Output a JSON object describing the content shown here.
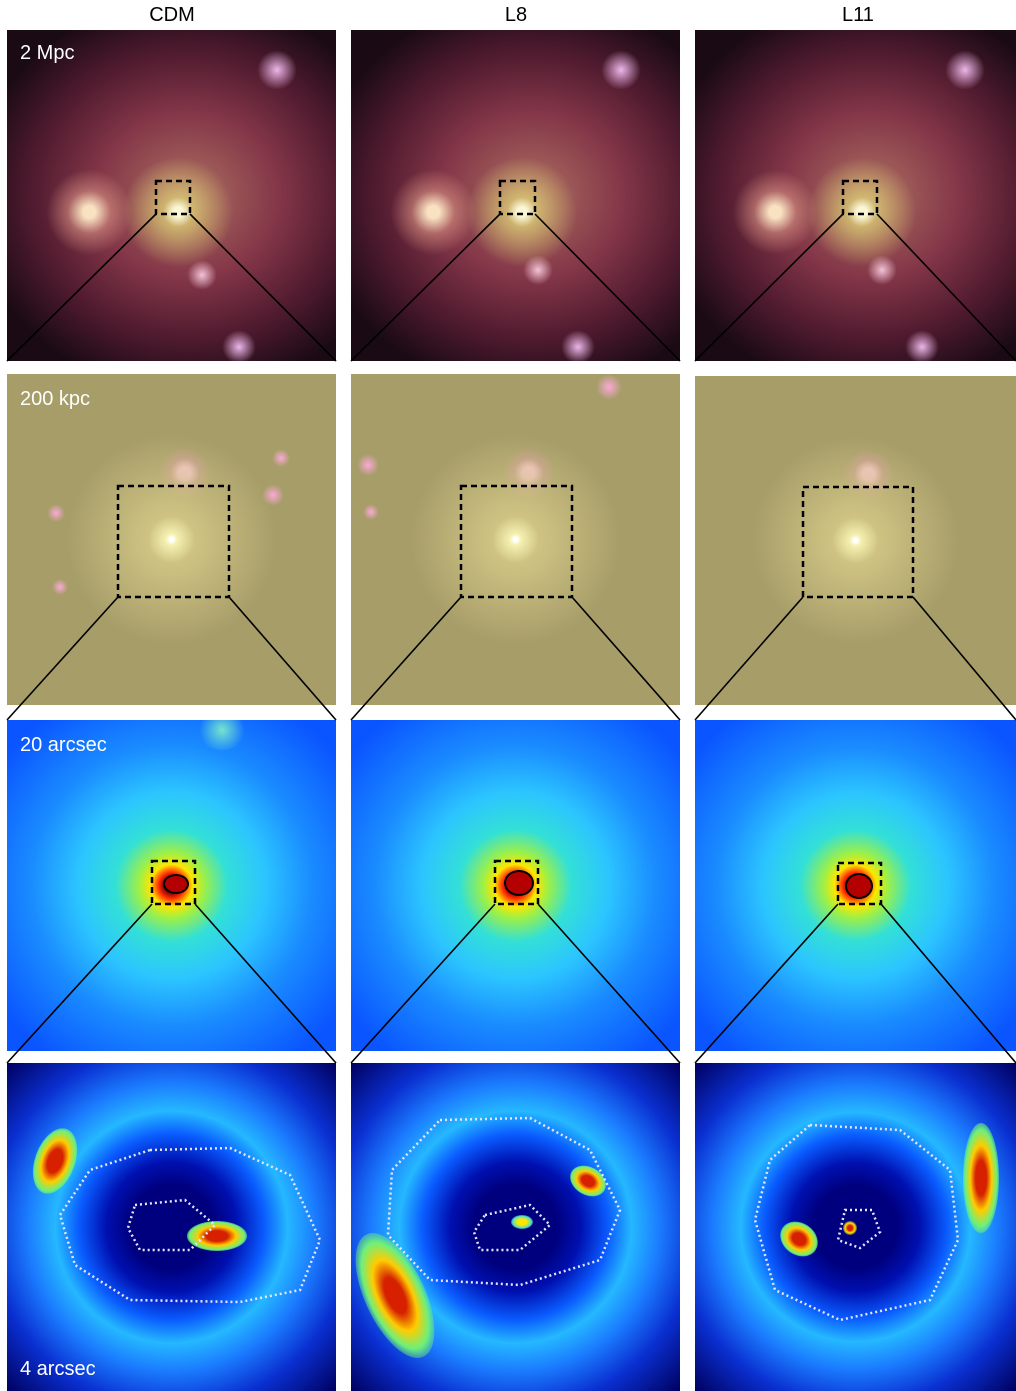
{
  "columns": [
    {
      "title": "CDM"
    },
    {
      "title": "L8"
    },
    {
      "title": "L11"
    }
  ],
  "rows": [
    {
      "scale_label": "2 Mpc"
    },
    {
      "scale_label": "200 kpc"
    },
    {
      "scale_label": "20 arcsec"
    },
    {
      "scale_label": "4 arcsec"
    }
  ],
  "colors": {
    "background": "#ffffff",
    "label_text": "#ffffff",
    "zoom_box": "#000000",
    "critical_curve": "#e6e6ff"
  }
}
